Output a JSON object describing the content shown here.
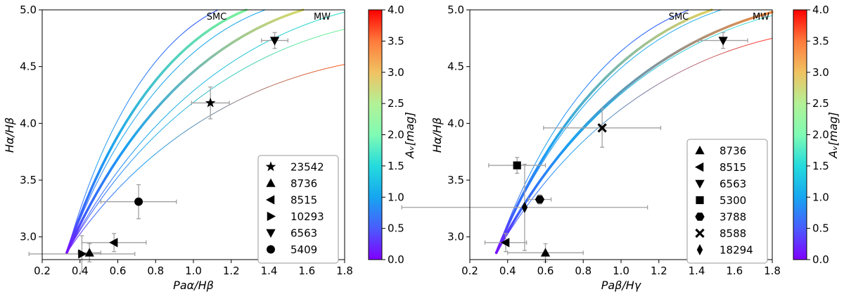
{
  "chart_data": [
    {
      "type": "scatter",
      "xlabel": "Paα/Hβ",
      "ylabel": "Hα/Hβ",
      "xlim": [
        0.2,
        1.8
      ],
      "ylim": [
        2.8,
        5.0
      ],
      "xticks": [
        "0.2",
        "0.4",
        "0.6",
        "0.8",
        "1.0",
        "1.2",
        "1.4",
        "1.6",
        "1.8"
      ],
      "yticks": [
        "3.0",
        "3.5",
        "4.0",
        "4.5",
        "5.0"
      ],
      "curve_origin": [
        0.33,
        2.86
      ],
      "curves": [
        {
          "name": "",
          "end": [
            1.13,
            5.0
          ],
          "width": 1,
          "color": "#3050ff"
        },
        {
          "name": "SMC",
          "end": [
            1.28,
            5.0
          ],
          "width": 3.5,
          "color": "#7cf29a"
        },
        {
          "name": "",
          "end": [
            1.38,
            5.0
          ],
          "width": 1,
          "color": "#19a8e6"
        },
        {
          "name": "MW",
          "end": [
            1.58,
            5.0
          ],
          "width": 3.5,
          "color": "#d9d96a"
        },
        {
          "name": "",
          "end": [
            1.8,
            4.98
          ],
          "width": 1,
          "color": "#27e0c8"
        },
        {
          "name": "",
          "end": [
            1.8,
            4.83
          ],
          "width": 1,
          "color": "#5ef28a"
        },
        {
          "name": "",
          "end": [
            1.8,
            4.52
          ],
          "width": 1,
          "color": "#ff5a1a"
        }
      ],
      "curve_labels": [
        "SMC",
        "MW"
      ],
      "points": [
        {
          "id": "23542",
          "marker": "star",
          "x": 1.09,
          "y": 4.18,
          "xerr": 0.1,
          "yerr": 0.14
        },
        {
          "id": "8736",
          "marker": "triangle-up",
          "x": 0.45,
          "y": 2.86,
          "xerr": 0.06,
          "yerr": 0.08
        },
        {
          "id": "8515",
          "marker": "triangle-left",
          "x": 0.58,
          "y": 2.95,
          "xerr": 0.17,
          "yerr": 0.08
        },
        {
          "id": "10293",
          "marker": "triangle-right",
          "x": 0.41,
          "y": 2.85,
          "xerr": 0.28,
          "yerr": 0.16
        },
        {
          "id": "6563",
          "marker": "triangle-down",
          "x": 1.43,
          "y": 4.73,
          "xerr": 0.07,
          "yerr": 0.07
        },
        {
          "id": "5409",
          "marker": "circle",
          "x": 0.71,
          "y": 3.31,
          "xerr": 0.2,
          "yerr": 0.15
        }
      ],
      "legend": [
        "23542",
        "8736",
        "8515",
        "10293",
        "6563",
        "5409"
      ]
    },
    {
      "type": "scatter",
      "xlabel": "Paβ/Hγ",
      "ylabel": "Hα/Hβ",
      "xlim": [
        0.2,
        1.8
      ],
      "ylim": [
        2.8,
        5.0
      ],
      "xticks": [
        "0.2",
        "0.4",
        "0.6",
        "0.8",
        "1.0",
        "1.2",
        "1.4",
        "1.6",
        "1.8"
      ],
      "yticks": [
        "3.0",
        "3.5",
        "4.0",
        "4.5",
        "5.0"
      ],
      "curve_origin": [
        0.34,
        2.86
      ],
      "curves": [
        {
          "name": "",
          "end": [
            1.36,
            5.0
          ],
          "width": 1,
          "color": "#3050ff"
        },
        {
          "name": "SMC",
          "end": [
            1.48,
            5.0
          ],
          "width": 3.5,
          "color": "#e0d060"
        },
        {
          "name": "",
          "end": [
            1.53,
            5.0
          ],
          "width": 1,
          "color": "#19a8e6"
        },
        {
          "name": "MW",
          "end": [
            1.8,
            4.98
          ],
          "width": 3.5,
          "color": "#f08a40"
        },
        {
          "name": "",
          "end": [
            1.8,
            4.95
          ],
          "width": 1,
          "color": "#27e0c8"
        },
        {
          "name": "",
          "end": [
            1.8,
            4.75
          ],
          "width": 1,
          "color": "#ff3a2a"
        }
      ],
      "curve_labels": [
        "SMC",
        "MW"
      ],
      "points": [
        {
          "id": "8736",
          "marker": "triangle-up",
          "x": 0.6,
          "y": 2.86,
          "xerr": 0.2,
          "yerr": 0.08
        },
        {
          "id": "8515",
          "marker": "triangle-left",
          "x": 0.39,
          "y": 2.95,
          "xerr": 0.11,
          "yerr": 0.08
        },
        {
          "id": "6563",
          "marker": "triangle-down",
          "x": 1.54,
          "y": 4.73,
          "xerr": 0.13,
          "yerr": 0.07
        },
        {
          "id": "5300",
          "marker": "square",
          "x": 0.45,
          "y": 3.63,
          "xerr": 0.15,
          "yerr": 0.07
        },
        {
          "id": "3788",
          "marker": "hexagon",
          "x": 0.57,
          "y": 3.33,
          "xerr": 0.06,
          "yerr": 0.04
        },
        {
          "id": "8588",
          "marker": "x",
          "x": 0.9,
          "y": 3.96,
          "xerr": 0.31,
          "yerr": 0.17
        },
        {
          "id": "18294",
          "marker": "diamond",
          "x": 0.49,
          "y": 3.26,
          "xerr": 0.65,
          "yerr": 0.38
        }
      ],
      "legend": [
        "8736",
        "8515",
        "6563",
        "5300",
        "3788",
        "8588",
        "18294"
      ]
    }
  ],
  "colorbar": {
    "label": "Aᵥ[mag]",
    "min": 0.0,
    "max": 4.0,
    "ticks": [
      "0.0",
      "0.5",
      "1.0",
      "1.5",
      "2.0",
      "2.5",
      "3.0",
      "3.5",
      "4.0"
    ],
    "colormap": "rainbow"
  }
}
